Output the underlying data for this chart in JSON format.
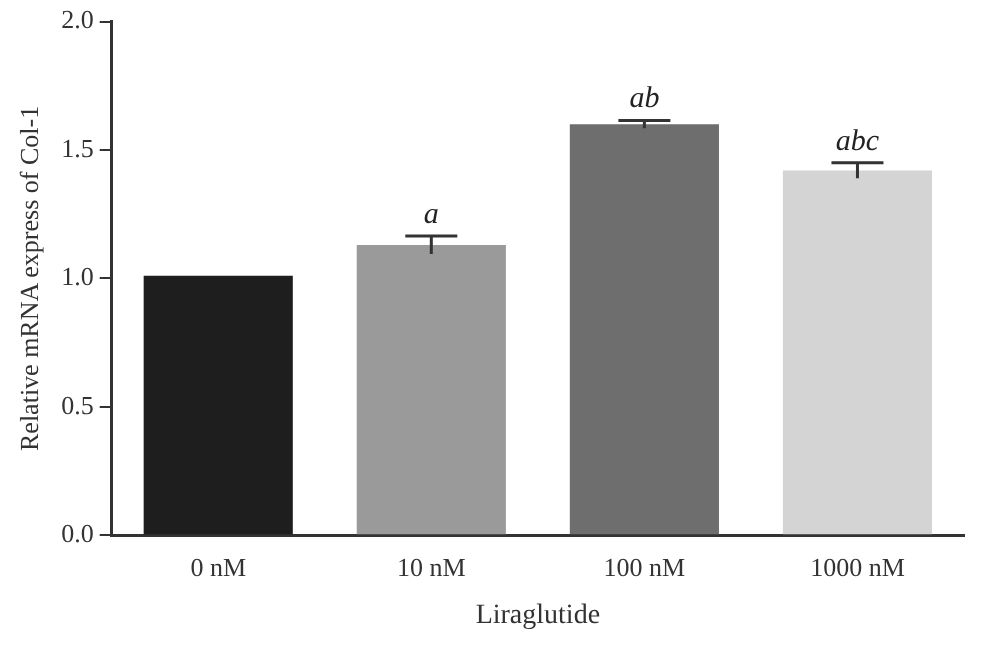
{
  "chart_data": {
    "type": "bar",
    "xlabel": "Liraglutide",
    "ylabel": "Relative mRNA express of Col-1",
    "categories": [
      "0 nM",
      "10 nM",
      "100 nM",
      "1000 nM"
    ],
    "values": [
      1.01,
      1.13,
      1.6,
      1.42
    ],
    "colors": [
      "#1e1e1e",
      "#9a9a9a",
      "#6e6e6e",
      "#d4d4d4"
    ],
    "errors": [
      null,
      0.035,
      0.015,
      0.03
    ],
    "ylim": [
      0,
      2
    ],
    "yticks": [
      {
        "value": 0,
        "label": "0.0"
      },
      {
        "value": 0.5,
        "label": "0.5"
      },
      {
        "value": 1,
        "label": "1.0"
      },
      {
        "value": 1.5,
        "label": "1.5"
      },
      {
        "value": 2,
        "label": "2.0"
      }
    ],
    "grid": false,
    "legend": false,
    "annotations": [
      {
        "text": "a",
        "x": "10 nM",
        "y": 1.165
      },
      {
        "text": "ab",
        "x": "100 nM",
        "y": 1.615
      },
      {
        "text": "abc",
        "x": "1000 nM",
        "y": 1.45
      }
    ]
  }
}
